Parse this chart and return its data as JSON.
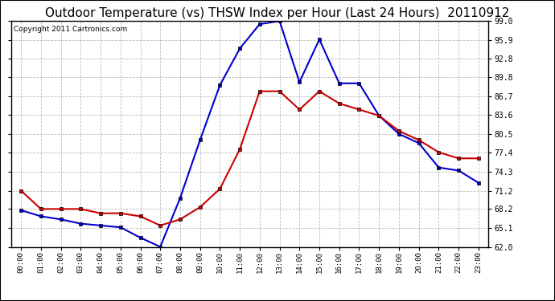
{
  "title": "Outdoor Temperature (vs) THSW Index per Hour (Last 24 Hours)  20110912",
  "copyright": "Copyright 2011 Cartronics.com",
  "hours": [
    "00:00",
    "01:00",
    "02:00",
    "03:00",
    "04:00",
    "05:00",
    "06:00",
    "07:00",
    "08:00",
    "09:00",
    "10:00",
    "11:00",
    "12:00",
    "13:00",
    "14:00",
    "15:00",
    "16:00",
    "17:00",
    "18:00",
    "19:00",
    "20:00",
    "21:00",
    "22:00",
    "23:00"
  ],
  "temp": [
    71.2,
    68.2,
    68.2,
    68.2,
    67.5,
    67.5,
    67.0,
    65.5,
    66.5,
    68.5,
    71.5,
    78.0,
    87.5,
    87.5,
    84.5,
    87.5,
    85.5,
    84.5,
    83.5,
    81.0,
    79.5,
    77.5,
    76.5,
    76.5
  ],
  "thsw": [
    68.0,
    67.0,
    66.5,
    65.8,
    65.5,
    65.2,
    63.5,
    62.0,
    70.0,
    79.5,
    88.5,
    94.5,
    98.5,
    99.0,
    89.0,
    96.0,
    88.8,
    88.8,
    83.5,
    80.5,
    79.0,
    75.0,
    74.5,
    72.5
  ],
  "ylim": [
    62.0,
    99.0
  ],
  "yticks": [
    62.0,
    65.1,
    68.2,
    71.2,
    74.3,
    77.4,
    80.5,
    83.6,
    86.7,
    89.8,
    92.8,
    95.9,
    99.0
  ],
  "temp_color": "#cc0000",
  "thsw_color": "#0000cc",
  "bg_color": "#ffffff",
  "grid_color": "#aaaaaa",
  "title_fontsize": 11,
  "copyright_fontsize": 6.5
}
